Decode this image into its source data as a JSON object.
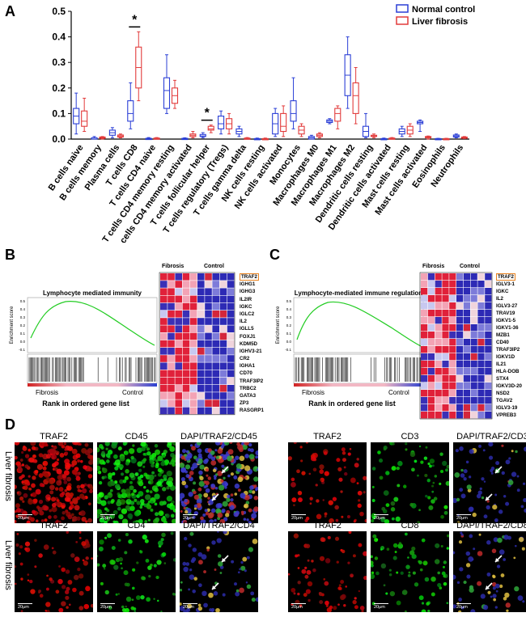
{
  "panels": {
    "a": "A",
    "b": "B",
    "c": "C",
    "d": "D"
  },
  "chart_data": [
    {
      "type": "box",
      "legend": [
        {
          "name": "Normal control",
          "color": "#2b3fd6"
        },
        {
          "name": "Liver fibrosis",
          "color": "#e23b3b"
        }
      ],
      "legend_placement": "top-right",
      "ylim": [
        0,
        0.5
      ],
      "yticks": [
        "0.0",
        "0.1",
        "0.2",
        "0.3",
        "0.4",
        "0.5"
      ],
      "significance": [
        {
          "category": "T cells CD8",
          "label": "*"
        },
        {
          "category": "T cells follicular helper",
          "label": "*"
        }
      ],
      "categories": [
        "B cells naive",
        "B cells memory",
        "Plasma cells",
        "T cells CD8",
        "T cells CD4 naive",
        "T cells CD4 memory resting",
        "T cells CD4 memory activated",
        "T cells follicular helper",
        "T cells regulatory (Tregs)",
        "T cells gamma delta",
        "NK cells resting",
        "NK cells activated",
        "Monocytes",
        "Macrophages M0",
        "Macrophages M1",
        "Macrophages M2",
        "Dendritic cells resting",
        "Dendritic cells activated",
        "Mast cells resting",
        "Mast cells activated",
        "Eosinophils",
        "Neutrophils"
      ],
      "series": [
        {
          "name": "Normal control",
          "boxes": [
            [
              0.02,
              0.06,
              0.09,
              0.12,
              0.18
            ],
            [
              0,
              0,
              0,
              0.005,
              0.01
            ],
            [
              0.005,
              0.015,
              0.025,
              0.035,
              0.045
            ],
            [
              0.04,
              0.07,
              0.1,
              0.15,
              0.22
            ],
            [
              0,
              0,
              0,
              0.003,
              0.006
            ],
            [
              0.1,
              0.12,
              0.19,
              0.24,
              0.33
            ],
            [
              0,
              0,
              0,
              0.003,
              0.005
            ],
            [
              0.005,
              0.01,
              0.012,
              0.018,
              0.025
            ],
            [
              0.02,
              0.04,
              0.06,
              0.09,
              0.11
            ],
            [
              0.01,
              0.02,
              0.03,
              0.04,
              0.05
            ],
            [
              0,
              0,
              0,
              0.002,
              0.004
            ],
            [
              0.01,
              0.02,
              0.06,
              0.1,
              0.12
            ],
            [
              0.04,
              0.07,
              0.1,
              0.15,
              0.24
            ],
            [
              0,
              0,
              0.005,
              0.01,
              0.015
            ],
            [
              0.06,
              0.065,
              0.07,
              0.075,
              0.08
            ],
            [
              0.12,
              0.17,
              0.25,
              0.33,
              0.4
            ],
            [
              0.005,
              0.01,
              0.03,
              0.05,
              0.1
            ],
            [
              0,
              0,
              0,
              0.002,
              0.004
            ],
            [
              0.01,
              0.02,
              0.03,
              0.04,
              0.05
            ],
            [
              0.03,
              0.06,
              0.065,
              0.07,
              0.075
            ],
            [
              0,
              0,
              0,
              0.002,
              0.003
            ],
            [
              0.005,
              0.008,
              0.012,
              0.016,
              0.02
            ]
          ]
        },
        {
          "name": "Liver fibrosis",
          "boxes": [
            [
              0.03,
              0.05,
              0.07,
              0.11,
              0.16
            ],
            [
              0,
              0.003,
              0.005,
              0.008,
              0.01
            ],
            [
              0.005,
              0.008,
              0.012,
              0.016,
              0.02
            ],
            [
              0.15,
              0.2,
              0.28,
              0.36,
              0.42
            ],
            [
              0,
              0,
              0.002,
              0.004,
              0.006
            ],
            [
              0.12,
              0.14,
              0.17,
              0.2,
              0.23
            ],
            [
              0.005,
              0.01,
              0.015,
              0.02,
              0.03
            ],
            [
              0.025,
              0.035,
              0.04,
              0.05,
              0.055
            ],
            [
              0.02,
              0.04,
              0.06,
              0.08,
              0.1
            ],
            [
              0,
              0,
              0.002,
              0.004,
              0.006
            ],
            [
              0,
              0,
              0,
              0.002,
              0.004
            ],
            [
              0.01,
              0.03,
              0.05,
              0.1,
              0.13
            ],
            [
              0.01,
              0.02,
              0.035,
              0.05,
              0.06
            ],
            [
              0.005,
              0.01,
              0.015,
              0.02,
              0.025
            ],
            [
              0.04,
              0.07,
              0.1,
              0.12,
              0.13
            ],
            [
              0.06,
              0.1,
              0.17,
              0.22,
              0.28
            ],
            [
              0.005,
              0.01,
              0.012,
              0.015,
              0.02
            ],
            [
              0,
              0,
              0.002,
              0.004,
              0.006
            ],
            [
              0.01,
              0.02,
              0.035,
              0.05,
              0.06
            ],
            [
              0,
              0.005,
              0.008,
              0.01,
              0.012
            ],
            [
              0,
              0,
              0,
              0.002,
              0.003
            ],
            [
              0.002,
              0.004,
              0.006,
              0.008,
              0.01
            ]
          ]
        }
      ]
    }
  ],
  "gsea": [
    {
      "title": "Lymphocyte mediated immunity",
      "y_axis_label": "Enrichment score",
      "yticks": [
        "0.5",
        "0.4",
        "0.3",
        "0.2",
        "0.1",
        "0.0",
        "-0.1"
      ],
      "left_label": "Fibrosis",
      "right_label": "Control",
      "xlabel": "Rank in ordered gene list",
      "heatmap_groups": [
        "Fibrosis",
        "Control"
      ],
      "highlight_gene": "TRAF2",
      "genes": [
        "TRAF2",
        "IGHG1",
        "IGHG3",
        "IL2IR",
        "IGKC",
        "IGLC2",
        "IL2",
        "IGLL5",
        "FOXJ1",
        "KDM5D",
        "IGHV3-21",
        "CR2",
        "IGHA1",
        "CD70",
        "TRAF3IP2",
        "TRBC2",
        "GATA3",
        "ZP3",
        "RASGRP1"
      ]
    },
    {
      "title": "Lymphocyte-mediated immune regulation",
      "y_axis_label": "Enrichment score",
      "yticks": [
        "0.5",
        "0.4",
        "0.3",
        "0.2",
        "0.1",
        "0.0",
        "-0.1"
      ],
      "left_label": "Fibrosis",
      "right_label": "Control",
      "xlabel": "Rank in ordered gene list",
      "heatmap_groups": [
        "Fibrosis",
        "Control"
      ],
      "highlight_gene": "TRAF2",
      "genes": [
        "TRAF2",
        "IGLV3-1",
        "IGKC",
        "IL2",
        "IGLV3-27",
        "TRAV19",
        "IGKV1-5",
        "IGKV1-36",
        "MZB1",
        "CD40",
        "TRAF3IP2",
        "IGKV1D",
        "IL21",
        "HLA-DOB",
        "STX4",
        "IGKV3D-20",
        "NSD2",
        "TGAV2",
        "IGLV3-19",
        "VPREB3"
      ]
    }
  ],
  "micro": {
    "row_label": "Liver fibrosis",
    "scale": "20μm",
    "groups": [
      {
        "titles": [
          "TRAF2",
          "CD45",
          "DAPI/TRAF2/CD45"
        ]
      },
      {
        "titles": [
          "TRAF2",
          "CD3",
          "DAPI/TRAF2/CD3"
        ]
      },
      {
        "titles": [
          "TRAF2",
          "CD4",
          "DAPI/TRAF2/CD4"
        ]
      },
      {
        "titles": [
          "TRAF2",
          "CD8",
          "DAPI/TRAF2/CD8"
        ]
      }
    ]
  }
}
